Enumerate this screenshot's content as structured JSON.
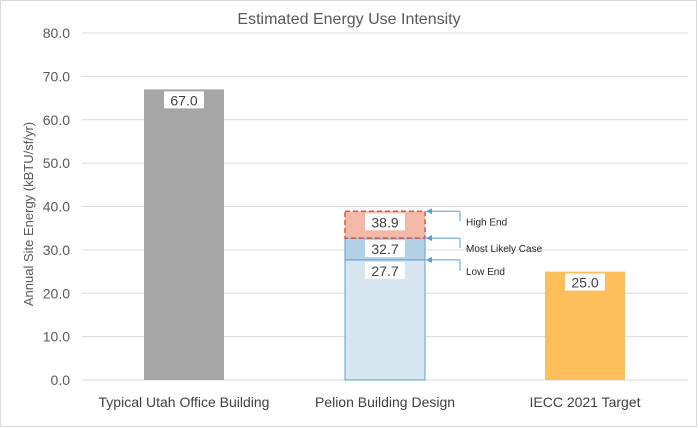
{
  "chart_data": {
    "type": "bar",
    "title": "Estimated Energy Use Intensity",
    "xlabel": "",
    "ylabel": "Annual Site Energy (kBTU/sf/yr)",
    "ylim": [
      0,
      80
    ],
    "yticks": [
      0,
      10,
      20,
      30,
      40,
      50,
      60,
      70,
      80
    ],
    "ytick_labels": [
      "0.0",
      "10.0",
      "20.0",
      "30.0",
      "40.0",
      "50.0",
      "60.0",
      "70.0",
      "80.0"
    ],
    "grid": true,
    "categories": [
      "Typical Utah Office Building",
      "Pelion Building Design",
      "IECC 2021 Target"
    ],
    "bars": [
      {
        "category": "Typical Utah Office Building",
        "value": 67.0,
        "label": "67.0",
        "color": "#a6a6a6"
      },
      {
        "category": "Pelion Building Design",
        "value": 27.7,
        "label": "27.7",
        "color": "#d5e6f0",
        "segments": [
          {
            "from": 0,
            "to": 27.7,
            "label": "27.7",
            "color": "#d5e6f0",
            "annotation": "Low End"
          },
          {
            "from": 27.7,
            "to": 32.7,
            "label": "32.7",
            "color": "#b3d1e6",
            "annotation": "Most Likely Case"
          },
          {
            "from": 32.7,
            "to": 38.9,
            "label": "38.9",
            "color": "#f4b9a6",
            "annotation": "High End"
          }
        ]
      },
      {
        "category": "IECC 2021 Target",
        "value": 25.0,
        "label": "25.0",
        "color": "#ffbe5c"
      }
    ],
    "annotations": [
      "High End",
      "Most Likely Case",
      "Low End"
    ],
    "colors": {
      "gray": "#a6a6a6",
      "lightBlue": "#d5e6f0",
      "midBlue": "#b3d1e6",
      "salmon": "#f4b9a6",
      "dashRed": "#e0533a",
      "orange": "#ffbe5c",
      "blueLine": "#5b9bd5"
    }
  }
}
